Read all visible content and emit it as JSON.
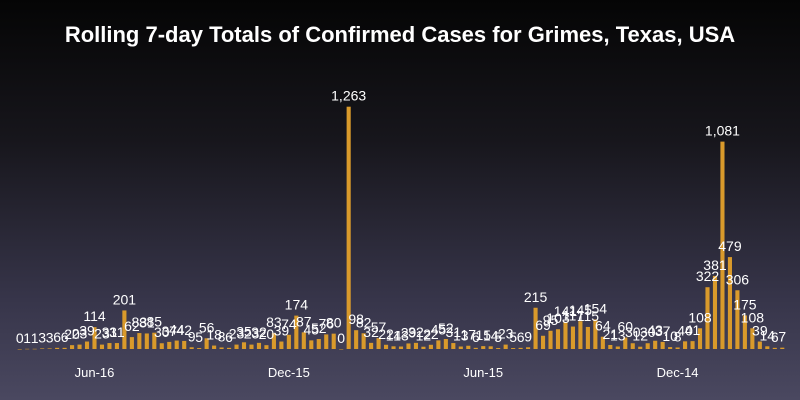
{
  "chart_data": {
    "type": "bar",
    "title": "Rolling 7-day Totals of Confirmed Cases for Grimes, Texas, USA",
    "xlabel": "",
    "ylabel": "",
    "bar_color": "#d99a2b",
    "label_color": "#ffffff",
    "ylim": [
      0,
      1350
    ],
    "grid": false,
    "x_tick_labels": [
      {
        "label": "Jun-16",
        "at_index": 10
      },
      {
        "label": "Dec-15",
        "at_index": 36
      },
      {
        "label": "Jun-15",
        "at_index": 62
      },
      {
        "label": "Dec-14",
        "at_index": 88
      }
    ],
    "values": [
      0,
      1,
      1,
      3,
      3,
      6,
      6,
      20,
      23,
      39,
      114,
      23,
      31,
      31,
      201,
      62,
      83,
      81,
      85,
      30,
      37,
      44,
      42,
      9,
      5,
      56,
      18,
      8,
      6,
      23,
      35,
      23,
      32,
      20,
      83,
      39,
      74,
      174,
      87,
      45,
      52,
      76,
      80,
      0,
      1263,
      98,
      82,
      32,
      57,
      22,
      14,
      13,
      29,
      32,
      12,
      22,
      45,
      52,
      31,
      13,
      17,
      6,
      15,
      14,
      5,
      23,
      5,
      6,
      9,
      215,
      69,
      95,
      103,
      141,
      117,
      145,
      115,
      154,
      64,
      21,
      13,
      60,
      30,
      12,
      30,
      43,
      37,
      10,
      8,
      40,
      41,
      108,
      322,
      381,
      1081,
      479,
      306,
      175,
      108,
      39,
      14,
      6,
      7
    ]
  }
}
